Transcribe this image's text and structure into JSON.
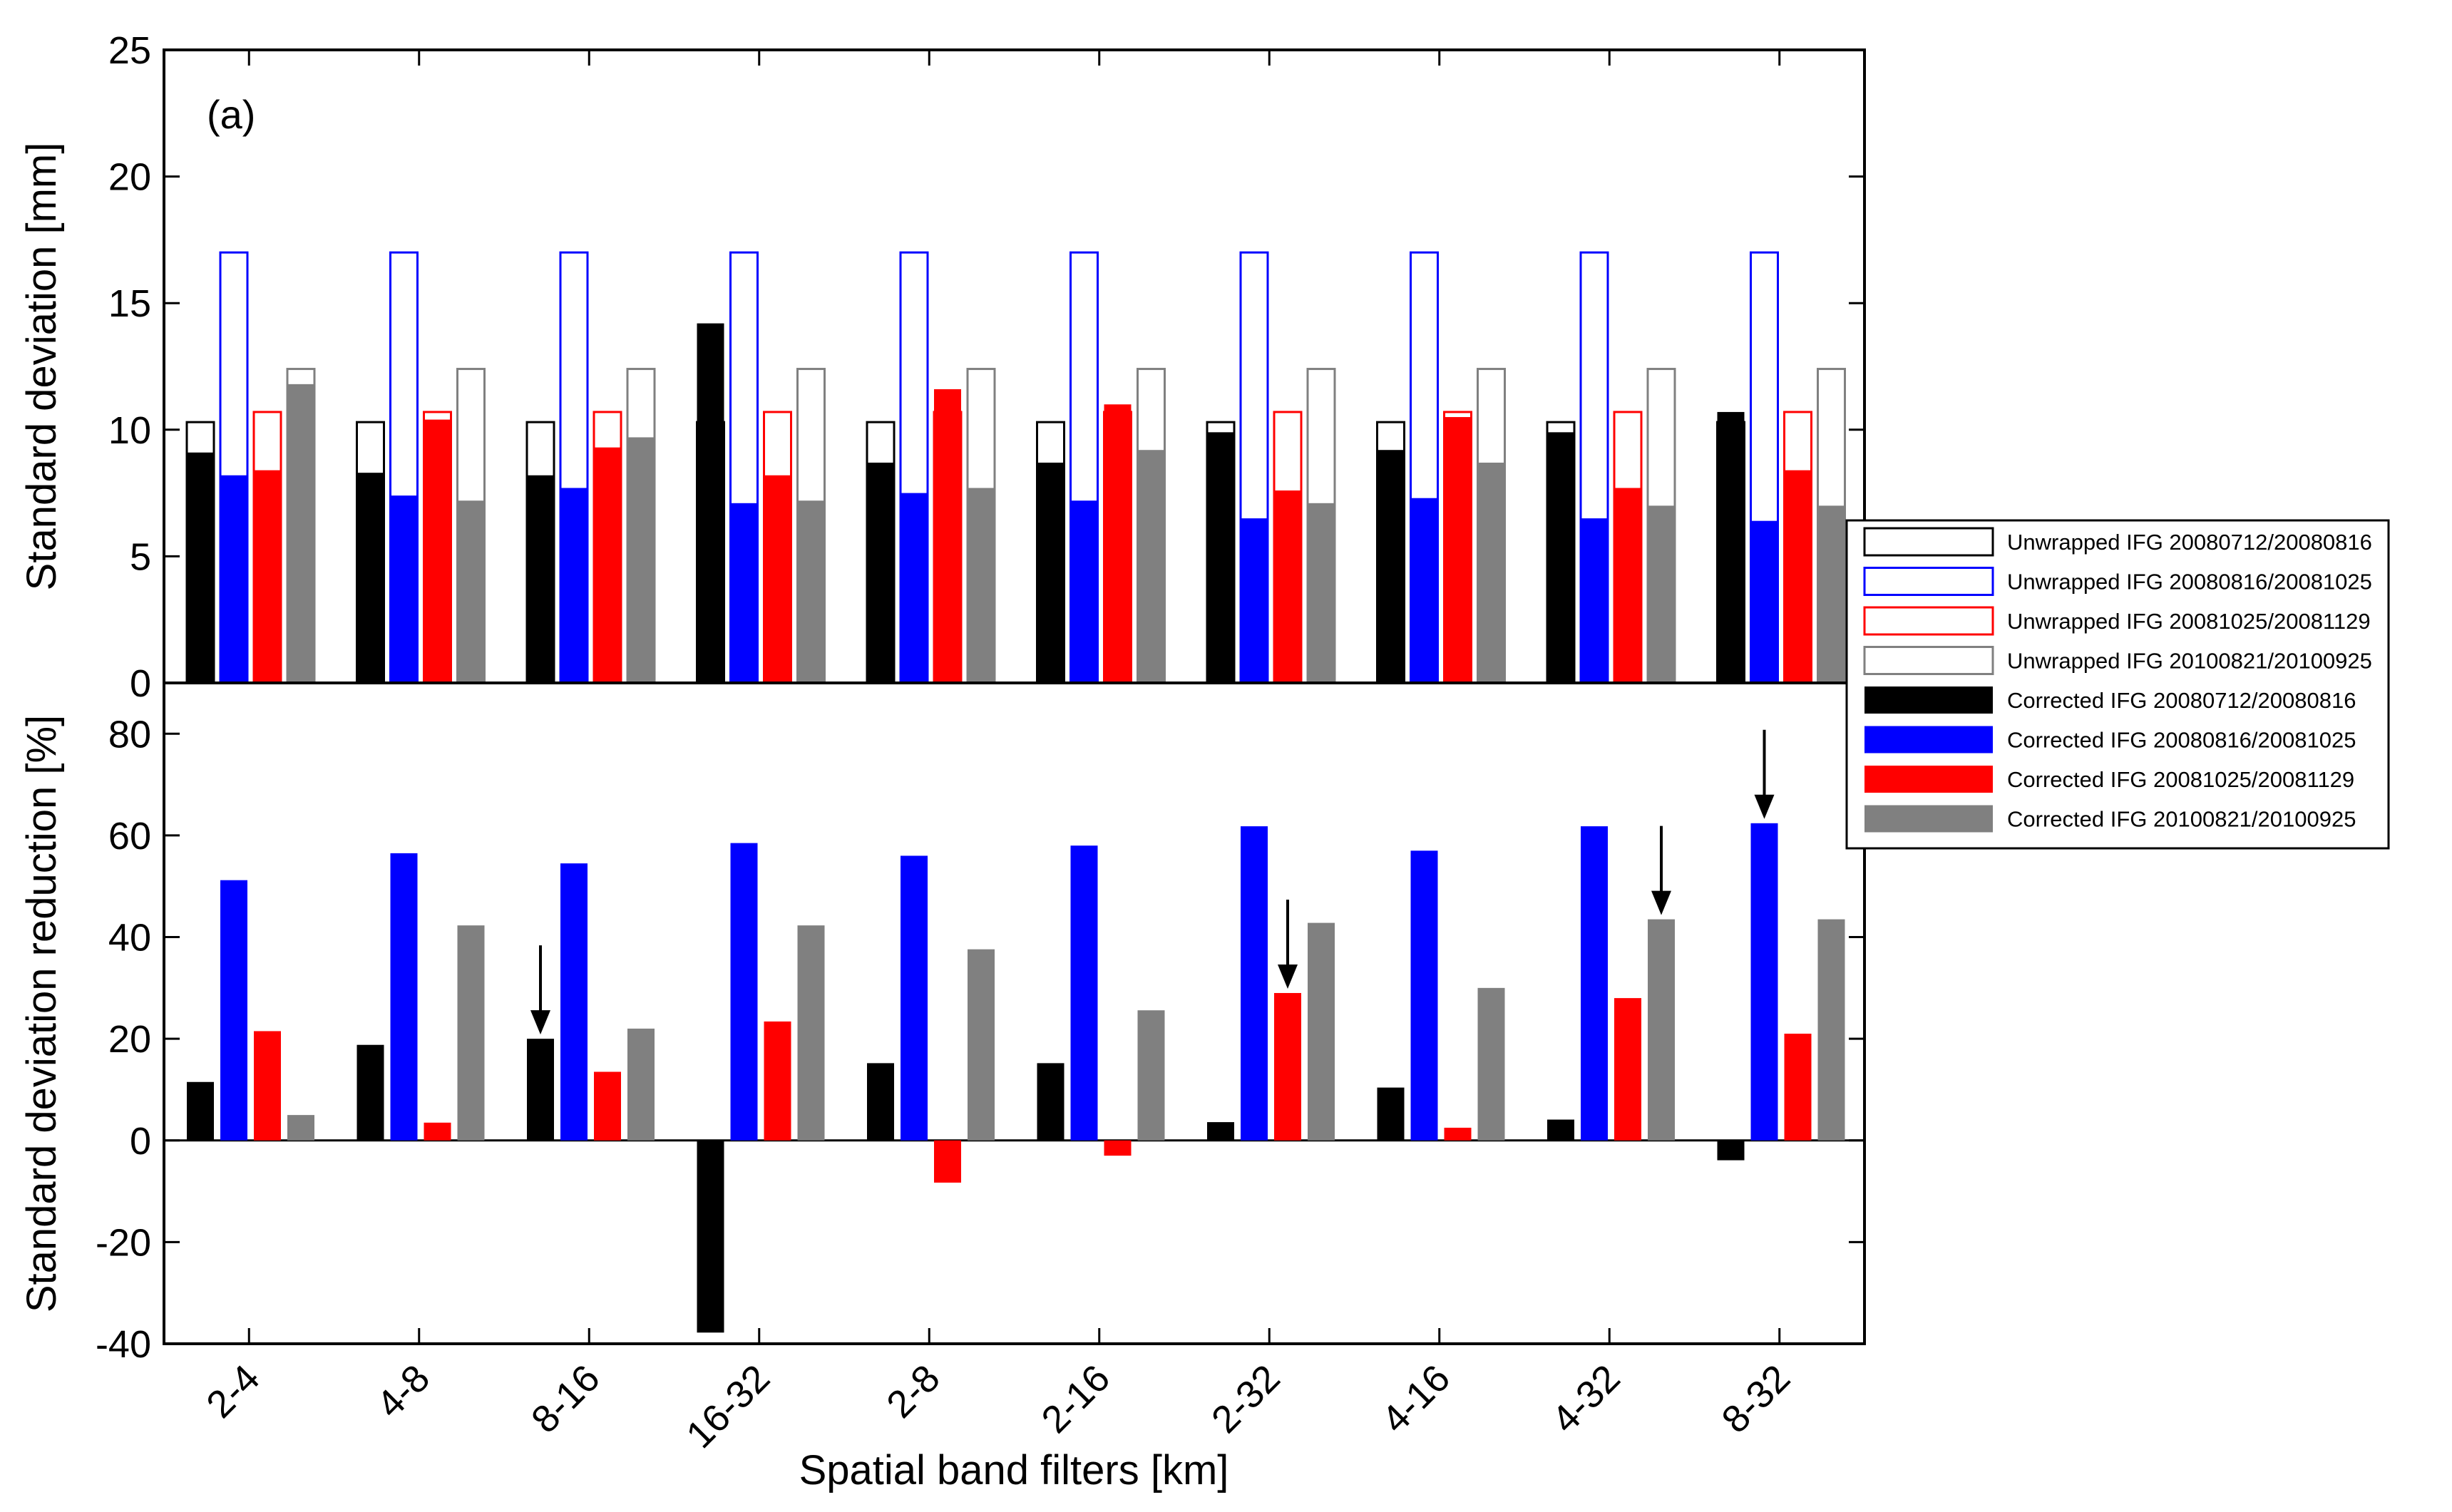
{
  "chart_data": [
    {
      "type": "bar",
      "panel_label": "(a)",
      "ylabel": "Standard deviation [mm]",
      "ylim": [
        0,
        25
      ],
      "yticks": [
        "0",
        "5",
        "10",
        "15",
        "20",
        "25"
      ],
      "categories": [
        "2-4",
        "4-8",
        "8-16",
        "16-32",
        "2-8",
        "2-16",
        "2-32",
        "4-16",
        "4-32",
        "8-32"
      ],
      "unwrapped_series": [
        {
          "name": "Unwrapped IFG 20080712/20080816",
          "values": [
            10.3,
            10.3,
            10.3,
            10.3,
            10.3,
            10.3,
            10.3,
            10.3,
            10.3,
            10.3
          ]
        },
        {
          "name": "Unwrapped IFG 20080816/20081025",
          "values": [
            17.0,
            17.0,
            17.0,
            17.0,
            17.0,
            17.0,
            17.0,
            17.0,
            17.0,
            17.0
          ]
        },
        {
          "name": "Unwrapped IFG 20081025/20081129",
          "values": [
            10.7,
            10.7,
            10.7,
            10.7,
            10.7,
            10.7,
            10.7,
            10.7,
            10.7,
            10.7
          ]
        },
        {
          "name": "Unwrapped IFG 20100821/20100925",
          "values": [
            12.4,
            12.4,
            12.4,
            12.4,
            12.4,
            12.4,
            12.4,
            12.4,
            12.4,
            12.4
          ]
        }
      ],
      "corrected_series": [
        {
          "name": "Corrected IFG 20080712/20080816",
          "values": [
            9.1,
            8.3,
            8.2,
            14.2,
            8.7,
            8.7,
            9.9,
            9.2,
            9.9,
            10.7
          ]
        },
        {
          "name": "Corrected IFG 20080816/20081025",
          "values": [
            8.2,
            7.4,
            7.7,
            7.1,
            7.5,
            7.2,
            6.5,
            7.3,
            6.5,
            6.4
          ]
        },
        {
          "name": "Corrected IFG 20081025/20081129",
          "values": [
            8.4,
            10.4,
            9.3,
            8.2,
            11.6,
            11.0,
            7.6,
            10.5,
            7.7,
            8.4
          ]
        },
        {
          "name": "Corrected IFG 20100821/20100925",
          "values": [
            11.8,
            7.2,
            9.7,
            7.2,
            7.7,
            9.2,
            7.1,
            8.7,
            7.0,
            7.0
          ]
        }
      ]
    },
    {
      "type": "bar",
      "ylabel": "Standard deviation reduction [%]",
      "xlabel": "Spatial band filters [km]",
      "ylim": [
        -40,
        90
      ],
      "yticks": [
        "-40",
        "-20",
        "0",
        "20",
        "40",
        "60",
        "80"
      ],
      "categories": [
        "2-4",
        "4-8",
        "8-16",
        "16-32",
        "2-8",
        "2-16",
        "2-32",
        "4-16",
        "4-32",
        "8-32"
      ],
      "series": [
        {
          "name": "Corrected IFG 20080712/20080816",
          "values": [
            11.5,
            18.8,
            20.0,
            -37.8,
            15.2,
            15.2,
            3.6,
            10.4,
            4.1,
            -3.9
          ]
        },
        {
          "name": "Corrected IFG 20080816/20081025",
          "values": [
            51.2,
            56.5,
            54.5,
            58.5,
            56.0,
            58.0,
            61.8,
            57.0,
            61.8,
            62.4
          ]
        },
        {
          "name": "Corrected IFG 20081025/20081129",
          "values": [
            21.5,
            3.5,
            13.5,
            23.4,
            -8.3,
            -3.0,
            29.0,
            2.5,
            28.0,
            21.0
          ]
        },
        {
          "name": "Corrected IFG 20100821/20100925",
          "values": [
            5.0,
            42.3,
            22.0,
            42.3,
            37.6,
            25.6,
            42.8,
            30.0,
            43.5,
            43.5
          ]
        }
      ],
      "annotations": [
        {
          "type": "arrow",
          "category": "8-16",
          "series": 0,
          "at_value": 20.0
        },
        {
          "type": "arrow",
          "category": "2-32",
          "series": 2,
          "at_value": 29.0
        },
        {
          "type": "arrow",
          "category": "4-32",
          "series": 3,
          "at_value": 43.5
        },
        {
          "type": "arrow",
          "category": "8-32",
          "series": 1,
          "at_value": 62.4
        }
      ]
    }
  ],
  "legend": [
    {
      "label": "Unwrapped IFG 20080712/20080816",
      "style": "outline",
      "color": "#000000"
    },
    {
      "label": "Unwrapped IFG 20080816/20081025",
      "style": "outline",
      "color": "#0000ff"
    },
    {
      "label": "Unwrapped IFG 20081025/20081129",
      "style": "outline",
      "color": "#ff0000"
    },
    {
      "label": "Unwrapped IFG 20100821/20100925",
      "style": "outline",
      "color": "#808080"
    },
    {
      "label": "Corrected IFG 20080712/20080816",
      "style": "filled",
      "color": "#000000"
    },
    {
      "label": "Corrected IFG 20080816/20081025",
      "style": "filled",
      "color": "#0000ff"
    },
    {
      "label": "Corrected IFG 20081025/20081129",
      "style": "filled",
      "color": "#ff0000"
    },
    {
      "label": "Corrected IFG 20100821/20100925",
      "style": "filled",
      "color": "#808080"
    }
  ],
  "colors": [
    "#000000",
    "#0000ff",
    "#ff0000",
    "#808080"
  ]
}
